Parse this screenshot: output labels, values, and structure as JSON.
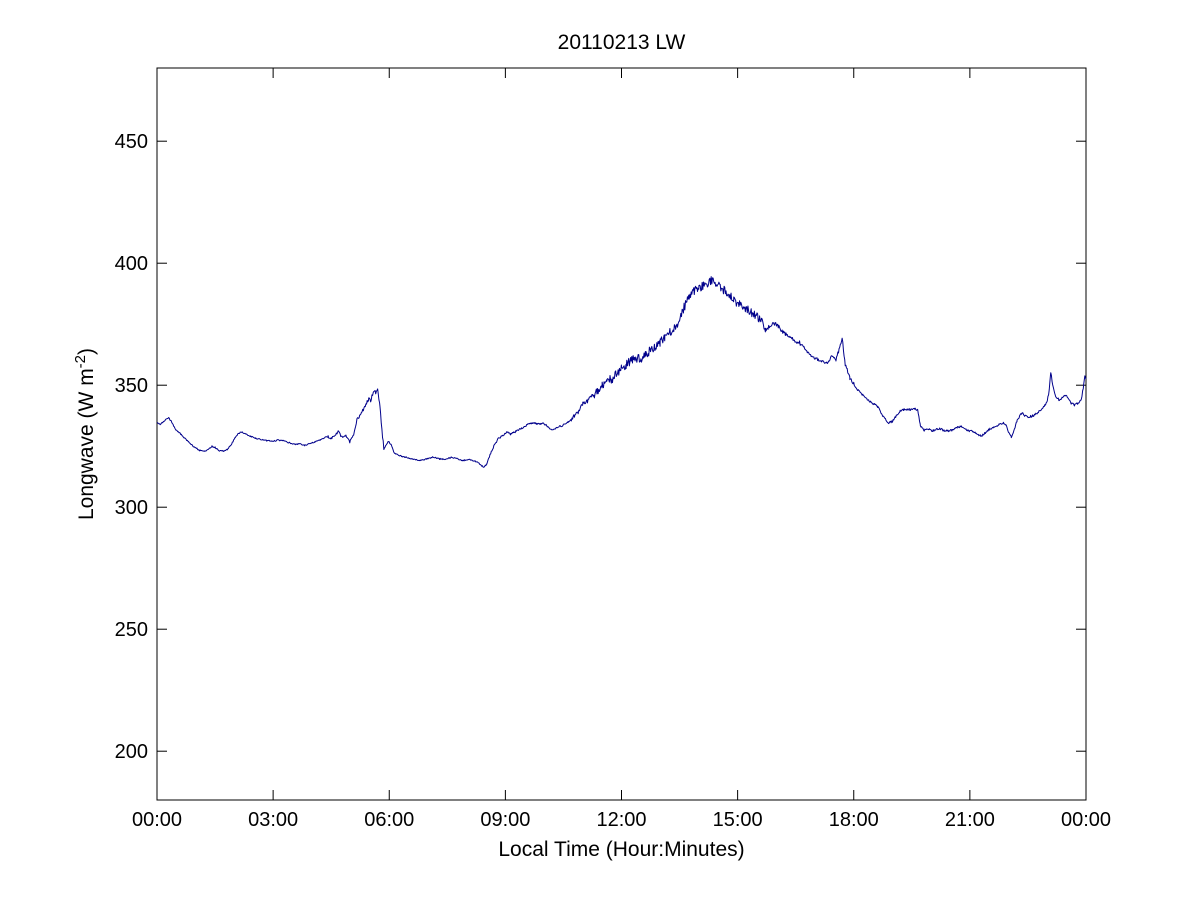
{
  "figure": {
    "background": "#ffffff"
  },
  "chart_data": {
    "type": "line",
    "title": "20110213 LW",
    "xlabel": "Local Time (Hour:Minutes)",
    "ylabel": "Longwave (W m^-2)",
    "ylabel_parts": {
      "prefix": "Longwave (W m",
      "superscript": "-2",
      "suffix": ")"
    },
    "x_tick_labels": [
      "00:00",
      "03:00",
      "06:00",
      "09:00",
      "12:00",
      "15:00",
      "18:00",
      "21:00",
      "00:00"
    ],
    "x_tick_hours": [
      0,
      3,
      6,
      9,
      12,
      15,
      18,
      21,
      24
    ],
    "y_tick_labels": [
      "200",
      "250",
      "300",
      "350",
      "400",
      "450"
    ],
    "y_tick_values": [
      200,
      250,
      300,
      350,
      400,
      450
    ],
    "xlim_hours": [
      0,
      24
    ],
    "ylim": [
      180,
      480
    ],
    "grid": false,
    "legend": "none",
    "axis_color": "#000000",
    "line_color": "#00008B",
    "series": [
      {
        "name": "Longwave",
        "units": "W m^-2",
        "points": [
          [
            0.0,
            334.5
          ],
          [
            0.08,
            334.0
          ],
          [
            0.17,
            335.0
          ],
          [
            0.25,
            336.3
          ],
          [
            0.3,
            336.6
          ],
          [
            0.38,
            335.0
          ],
          [
            0.47,
            332.0
          ],
          [
            0.58,
            330.5
          ],
          [
            0.7,
            328.5
          ],
          [
            0.83,
            326.5
          ],
          [
            0.95,
            324.8
          ],
          [
            1.1,
            323.3
          ],
          [
            1.22,
            322.8
          ],
          [
            1.33,
            323.8
          ],
          [
            1.42,
            325.0
          ],
          [
            1.5,
            324.5
          ],
          [
            1.6,
            323.2
          ],
          [
            1.72,
            323.0
          ],
          [
            1.83,
            323.8
          ],
          [
            1.93,
            326.0
          ],
          [
            2.02,
            328.5
          ],
          [
            2.1,
            330.3
          ],
          [
            2.2,
            330.8
          ],
          [
            2.3,
            330.0
          ],
          [
            2.42,
            329.0
          ],
          [
            2.55,
            328.3
          ],
          [
            2.7,
            327.6
          ],
          [
            2.85,
            327.3
          ],
          [
            3.0,
            327.0
          ],
          [
            3.12,
            327.5
          ],
          [
            3.25,
            327.3
          ],
          [
            3.4,
            326.5
          ],
          [
            3.55,
            325.8
          ],
          [
            3.7,
            326.0
          ],
          [
            3.82,
            325.3
          ],
          [
            3.95,
            326.0
          ],
          [
            4.08,
            326.8
          ],
          [
            4.22,
            327.6
          ],
          [
            4.33,
            328.6
          ],
          [
            4.42,
            329.0
          ],
          [
            4.5,
            328.0
          ],
          [
            4.6,
            329.6
          ],
          [
            4.68,
            331.0
          ],
          [
            4.78,
            328.6
          ],
          [
            4.88,
            329.6
          ],
          [
            4.98,
            326.7
          ],
          [
            5.08,
            330.0
          ],
          [
            5.17,
            335.8
          ],
          [
            5.28,
            338.5
          ],
          [
            5.38,
            341.9
          ],
          [
            5.47,
            344.5
          ],
          [
            5.52,
            343.5
          ],
          [
            5.6,
            348.0
          ],
          [
            5.65,
            346.8
          ],
          [
            5.7,
            348.3
          ],
          [
            5.76,
            341.0
          ],
          [
            5.81,
            331.5
          ],
          [
            5.86,
            324.3
          ],
          [
            5.92,
            325.5
          ],
          [
            5.98,
            327.0
          ],
          [
            6.05,
            325.5
          ],
          [
            6.12,
            322.4
          ],
          [
            6.25,
            321.2
          ],
          [
            6.4,
            320.6
          ],
          [
            6.55,
            320.0
          ],
          [
            6.7,
            319.4
          ],
          [
            6.85,
            319.2
          ],
          [
            7.0,
            320.0
          ],
          [
            7.15,
            320.6
          ],
          [
            7.3,
            319.8
          ],
          [
            7.45,
            319.6
          ],
          [
            7.6,
            320.4
          ],
          [
            7.75,
            320.0
          ],
          [
            7.9,
            319.1
          ],
          [
            8.05,
            319.6
          ],
          [
            8.2,
            319.0
          ],
          [
            8.32,
            318.0
          ],
          [
            8.43,
            316.4
          ],
          [
            8.52,
            317.6
          ],
          [
            8.62,
            322.0
          ],
          [
            8.72,
            325.6
          ],
          [
            8.82,
            328.2
          ],
          [
            8.95,
            329.6
          ],
          [
            9.05,
            330.9
          ],
          [
            9.13,
            330.0
          ],
          [
            9.22,
            330.6
          ],
          [
            9.35,
            331.8
          ],
          [
            9.5,
            333.2
          ],
          [
            9.62,
            334.2
          ],
          [
            9.75,
            334.6
          ],
          [
            9.85,
            334.0
          ],
          [
            9.95,
            334.4
          ],
          [
            10.05,
            333.6
          ],
          [
            10.15,
            332.4
          ],
          [
            10.25,
            331.8
          ],
          [
            10.35,
            332.6
          ],
          [
            10.5,
            333.7
          ],
          [
            10.62,
            335.0
          ],
          [
            10.75,
            336.8
          ],
          [
            10.88,
            339.0
          ],
          [
            11.0,
            342.3
          ],
          [
            11.12,
            343.6
          ],
          [
            11.25,
            345.5
          ],
          [
            11.38,
            347.5
          ],
          [
            11.5,
            350.0
          ],
          [
            11.62,
            351.8
          ],
          [
            11.75,
            352.6
          ],
          [
            11.88,
            354.5
          ],
          [
            12.0,
            357.0
          ],
          [
            12.12,
            358.5
          ],
          [
            12.25,
            360.0
          ],
          [
            12.38,
            361.0
          ],
          [
            12.5,
            360.5
          ],
          [
            12.62,
            362.5
          ],
          [
            12.75,
            364.5
          ],
          [
            12.88,
            366.0
          ],
          [
            13.0,
            367.5
          ],
          [
            13.12,
            369.5
          ],
          [
            13.25,
            371.5
          ],
          [
            13.38,
            373.5
          ],
          [
            13.5,
            376.5
          ],
          [
            13.62,
            382.0
          ],
          [
            13.75,
            386.5
          ],
          [
            13.88,
            388.5
          ],
          [
            14.0,
            390.0
          ],
          [
            14.12,
            391.0
          ],
          [
            14.25,
            392.0
          ],
          [
            14.35,
            393.5
          ],
          [
            14.45,
            391.5
          ],
          [
            14.55,
            390.5
          ],
          [
            14.65,
            389.0
          ],
          [
            14.78,
            387.5
          ],
          [
            14.9,
            385.5
          ],
          [
            15.0,
            383.5
          ],
          [
            15.15,
            382.0
          ],
          [
            15.3,
            380.5
          ],
          [
            15.45,
            379.0
          ],
          [
            15.6,
            377.0
          ],
          [
            15.72,
            372.5
          ],
          [
            15.82,
            374.0
          ],
          [
            15.92,
            375.5
          ],
          [
            16.05,
            374.0
          ],
          [
            16.2,
            371.5
          ],
          [
            16.35,
            369.5
          ],
          [
            16.5,
            368.0
          ],
          [
            16.65,
            367.0
          ],
          [
            16.8,
            363.5
          ],
          [
            16.95,
            361.5
          ],
          [
            17.1,
            360.3
          ],
          [
            17.3,
            359.0
          ],
          [
            17.45,
            362.3
          ],
          [
            17.54,
            360.3
          ],
          [
            17.62,
            364.5
          ],
          [
            17.7,
            369.4
          ],
          [
            17.78,
            358.5
          ],
          [
            17.9,
            353.0
          ],
          [
            18.05,
            349.5
          ],
          [
            18.2,
            346.5
          ],
          [
            18.35,
            344.0
          ],
          [
            18.5,
            342.5
          ],
          [
            18.62,
            341.2
          ],
          [
            18.75,
            337.5
          ],
          [
            18.9,
            334.5
          ],
          [
            19.0,
            335.2
          ],
          [
            19.1,
            337.5
          ],
          [
            19.2,
            339.5
          ],
          [
            19.33,
            340.2
          ],
          [
            19.45,
            340.0
          ],
          [
            19.57,
            340.5
          ],
          [
            19.65,
            339.8
          ],
          [
            19.72,
            333.5
          ],
          [
            19.82,
            331.5
          ],
          [
            19.92,
            332.2
          ],
          [
            20.02,
            331.2
          ],
          [
            20.12,
            331.8
          ],
          [
            20.22,
            332.2
          ],
          [
            20.33,
            331.5
          ],
          [
            20.45,
            331.2
          ],
          [
            20.57,
            331.8
          ],
          [
            20.68,
            332.8
          ],
          [
            20.8,
            333.0
          ],
          [
            20.9,
            331.8
          ],
          [
            21.0,
            331.2
          ],
          [
            21.1,
            331.0
          ],
          [
            21.2,
            329.8
          ],
          [
            21.3,
            329.2
          ],
          [
            21.4,
            330.6
          ],
          [
            21.52,
            332.2
          ],
          [
            21.63,
            332.8
          ],
          [
            21.75,
            333.8
          ],
          [
            21.85,
            334.6
          ],
          [
            21.93,
            334.0
          ],
          [
            22.0,
            330.8
          ],
          [
            22.07,
            328.6
          ],
          [
            22.15,
            332.0
          ],
          [
            22.22,
            335.5
          ],
          [
            22.3,
            337.5
          ],
          [
            22.35,
            339.0
          ],
          [
            22.42,
            337.6
          ],
          [
            22.52,
            337.0
          ],
          [
            22.62,
            337.5
          ],
          [
            22.72,
            338.5
          ],
          [
            22.82,
            339.8
          ],
          [
            22.92,
            341.2
          ],
          [
            23.0,
            343.5
          ],
          [
            23.05,
            348.0
          ],
          [
            23.09,
            355.5
          ],
          [
            23.14,
            350.0
          ],
          [
            23.2,
            345.8
          ],
          [
            23.3,
            344.0
          ],
          [
            23.38,
            344.6
          ],
          [
            23.45,
            346.2
          ],
          [
            23.52,
            345.3
          ],
          [
            23.6,
            342.8
          ],
          [
            23.7,
            342.0
          ],
          [
            23.8,
            342.6
          ],
          [
            23.88,
            344.0
          ],
          [
            23.94,
            350.0
          ],
          [
            23.97,
            354.0
          ],
          [
            24.0,
            352.5
          ]
        ]
      }
    ],
    "noise_segments": [
      [
        0.0,
        4.4,
        0.25
      ],
      [
        4.4,
        5.15,
        0.5
      ],
      [
        5.15,
        5.9,
        0.7
      ],
      [
        5.9,
        8.55,
        0.25
      ],
      [
        8.55,
        10.7,
        0.4
      ],
      [
        10.7,
        11.3,
        0.9
      ],
      [
        11.3,
        15.65,
        1.8
      ],
      [
        15.65,
        16.7,
        0.9
      ],
      [
        16.7,
        17.35,
        0.6
      ],
      [
        17.35,
        18.1,
        0.7
      ],
      [
        18.1,
        19.65,
        0.4
      ],
      [
        19.65,
        22.3,
        0.4
      ],
      [
        22.3,
        23.0,
        0.5
      ],
      [
        23.0,
        24.0,
        0.5
      ]
    ]
  }
}
